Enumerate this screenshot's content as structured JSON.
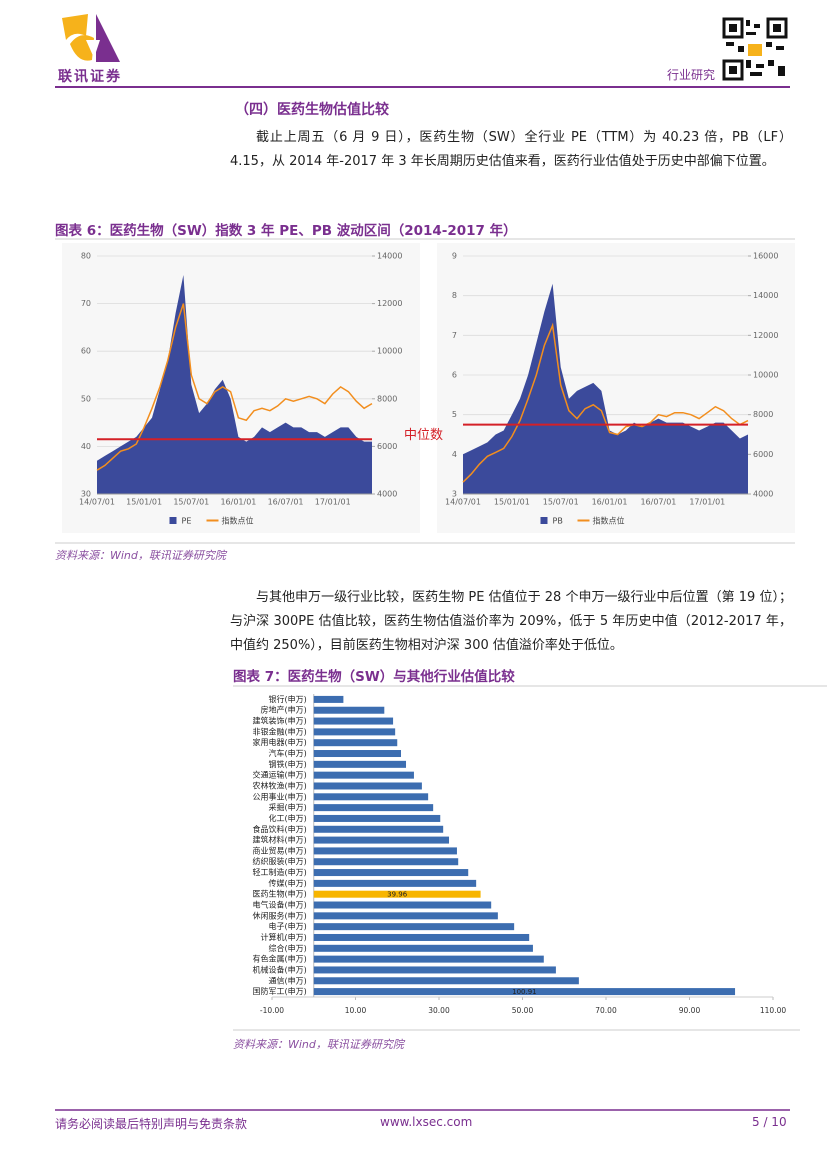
{
  "header": {
    "company": "联讯证券",
    "section": "行业研究"
  },
  "section_title": "（四）医药生物估值比较",
  "paragraph1": "截止上周五（6 月 9 日），医药生物（SW）全行业 PE（TTM）为 40.23 倍，PB（LF）4.15，从 2014 年-2017 年 3 年长周期历史估值来看，医药行业估值处于历史中部偏下位置。",
  "figure6": {
    "caption": "图表 6：医药生物（SW）指数 3 年 PE、PB 波动区间（2014-2017 年）",
    "annotation": "中位数",
    "source": "资料来源：Wind，联讯证券研究院"
  },
  "paragraph2": "与其他申万一级行业比较，医药生物 PE 估值位于 28 个申万一级行业中后位置（第 19 位）；与沪深 300PE 估值比较，医药生物估值溢价率为 209%，低于 5 年历史中值（2012-2017 年，中值约 250%），目前医药生物相对沪深 300 估值溢价率处于低位。",
  "figure7": {
    "caption": "图表 7：医药生物（SW）与其他行业估值比较",
    "source": "资料来源：Wind，联讯证券研究院"
  },
  "footer": {
    "disclaimer": "请务必阅读最后特别声明与免责条款",
    "url": "www.lxsec.com",
    "page": "5 / 10"
  },
  "chart_data": [
    {
      "type": "area",
      "categories": [
        "14/07/01",
        null,
        null,
        null,
        null,
        null,
        "15/01/01",
        null,
        null,
        null,
        null,
        null,
        "15/07/01",
        null,
        null,
        null,
        null,
        null,
        "16/01/01",
        null,
        null,
        null,
        null,
        null,
        "16/07/01",
        null,
        null,
        null,
        null,
        null,
        "17/01/01",
        null,
        null,
        null,
        null,
        null
      ],
      "series": [
        {
          "name": "PE",
          "style": "area",
          "color": "#3b4a9b",
          "values": [
            37,
            38,
            39,
            40,
            41,
            42,
            44,
            46,
            52,
            58,
            68,
            76,
            53,
            47,
            49,
            52,
            54,
            50,
            42,
            41,
            42,
            44,
            43,
            44,
            45,
            44,
            44,
            43,
            43,
            42,
            43,
            44,
            44,
            42,
            41,
            41
          ]
        },
        {
          "name": "指数点位",
          "style": "line",
          "axis": "y2",
          "color": "#f28e1e",
          "values": [
            5000,
            5200,
            5500,
            5800,
            5900,
            6100,
            6800,
            7600,
            8500,
            9600,
            11000,
            12000,
            9000,
            8000,
            7800,
            8300,
            8500,
            8300,
            7200,
            7100,
            7500,
            7600,
            7500,
            7700,
            8000,
            7900,
            8000,
            8100,
            8000,
            7800,
            8200,
            8500,
            8300,
            7900,
            7600,
            7800
          ]
        }
      ],
      "median_line": {
        "value": 41.5,
        "color": "#d42027"
      },
      "ylim": [
        30,
        80
      ],
      "yticks": [
        30,
        40,
        50,
        60,
        70,
        80
      ],
      "y2lim": [
        4000,
        14000
      ],
      "y2ticks": [
        4000,
        6000,
        8000,
        10000,
        12000,
        14000
      ],
      "grid": true
    },
    {
      "type": "area",
      "categories": [
        "14/07/01",
        null,
        null,
        null,
        null,
        null,
        "15/01/01",
        null,
        null,
        null,
        null,
        null,
        "15/07/01",
        null,
        null,
        null,
        null,
        null,
        "16/01/01",
        null,
        null,
        null,
        null,
        null,
        "16/07/01",
        null,
        null,
        null,
        null,
        null,
        "17/01/01",
        null,
        null,
        null,
        null,
        null
      ],
      "series": [
        {
          "name": "PB",
          "style": "area",
          "color": "#3b4a9b",
          "values": [
            4.0,
            4.1,
            4.2,
            4.3,
            4.5,
            4.6,
            5.0,
            5.4,
            6.0,
            6.8,
            7.6,
            8.3,
            6.2,
            5.4,
            5.6,
            5.7,
            5.8,
            5.6,
            4.6,
            4.5,
            4.6,
            4.8,
            4.7,
            4.8,
            4.9,
            4.8,
            4.8,
            4.8,
            4.7,
            4.6,
            4.7,
            4.8,
            4.8,
            4.6,
            4.4,
            4.5
          ]
        },
        {
          "name": "指数点位",
          "style": "line",
          "axis": "y2",
          "color": "#f28e1e",
          "values": [
            4600,
            5000,
            5500,
            5900,
            6100,
            6300,
            6900,
            7700,
            8800,
            10000,
            11500,
            12500,
            9500,
            8200,
            7800,
            8300,
            8500,
            8200,
            7100,
            7000,
            7400,
            7500,
            7400,
            7600,
            8000,
            7900,
            8100,
            8100,
            8000,
            7800,
            8100,
            8400,
            8200,
            7800,
            7500,
            7700
          ]
        }
      ],
      "median_line": {
        "value": 4.75,
        "color": "#d42027"
      },
      "ylim": [
        3,
        9
      ],
      "yticks": [
        3,
        4,
        5,
        6,
        7,
        8,
        9
      ],
      "y2lim": [
        4000,
        16000
      ],
      "y2ticks": [
        4000,
        6000,
        8000,
        10000,
        12000,
        14000,
        16000
      ],
      "grid": true
    },
    {
      "type": "bar",
      "orientation": "horizontal",
      "categories": [
        "银行(申万)",
        "房地产(申万)",
        "建筑装饰(申万)",
        "非银金融(申万)",
        "家用电器(申万)",
        "汽车(申万)",
        "钢铁(申万)",
        "交通运输(申万)",
        "农林牧渔(申万)",
        "公用事业(申万)",
        "采掘(申万)",
        "化工(申万)",
        "食品饮料(申万)",
        "建筑材料(申万)",
        "商业贸易(申万)",
        "纺织服装(申万)",
        "轻工制造(申万)",
        "传媒(申万)",
        "医药生物(申万)",
        "电气设备(申万)",
        "休闲服务(申万)",
        "电子(申万)",
        "计算机(申万)",
        "综合(申万)",
        "有色金属(申万)",
        "机械设备(申万)",
        "通信(申万)",
        "国防军工(申万)"
      ],
      "values": [
        7.1,
        16.9,
        19.0,
        19.5,
        20.0,
        20.9,
        22.1,
        24.0,
        25.9,
        27.4,
        28.6,
        30.3,
        31.0,
        32.4,
        34.3,
        34.6,
        37.0,
        38.9,
        39.96,
        42.5,
        44.1,
        48.0,
        51.6,
        52.5,
        55.1,
        58.0,
        63.5,
        100.91
      ],
      "value_labels": [
        null,
        null,
        null,
        null,
        null,
        null,
        null,
        null,
        null,
        null,
        null,
        null,
        null,
        null,
        null,
        null,
        null,
        null,
        "39.96",
        null,
        null,
        null,
        null,
        null,
        null,
        null,
        null,
        "100.91"
      ],
      "colors": [
        "#3c6db0",
        "#3c6db0",
        "#3c6db0",
        "#3c6db0",
        "#3c6db0",
        "#3c6db0",
        "#3c6db0",
        "#3c6db0",
        "#3c6db0",
        "#3c6db0",
        "#3c6db0",
        "#3c6db0",
        "#3c6db0",
        "#3c6db0",
        "#3c6db0",
        "#3c6db0",
        "#3c6db0",
        "#3c6db0",
        "#f7b500",
        "#3c6db0",
        "#3c6db0",
        "#3c6db0",
        "#3c6db0",
        "#3c6db0",
        "#3c6db0",
        "#3c6db0",
        "#3c6db0",
        "#3c6db0"
      ],
      "xlim": [
        -10,
        110
      ],
      "xticks": [
        {
          "value": -10,
          "label": "-10.00"
        },
        {
          "value": 10,
          "label": "10.00"
        },
        {
          "value": 30,
          "label": "30.00"
        },
        {
          "value": 50,
          "label": "50.00"
        },
        {
          "value": 70,
          "label": "70.00"
        },
        {
          "value": 90,
          "label": "90.00"
        },
        {
          "value": 110,
          "label": "110.00"
        }
      ],
      "grid": false
    }
  ]
}
